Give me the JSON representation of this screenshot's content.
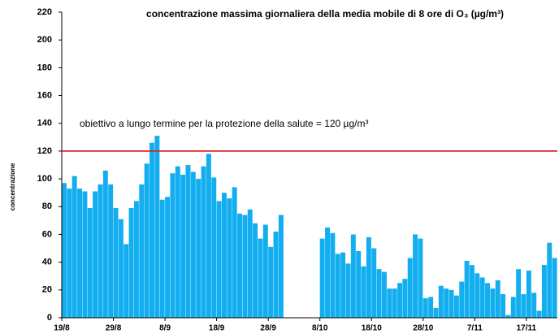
{
  "chart_data": {
    "type": "bar",
    "title": "concentrazione massima giornaliera della media mobile di 8 ore di O₃ (µg/m³)",
    "y_label": "concentrazione",
    "color": "#12aeef",
    "reference_line": {
      "value": 120,
      "label": "obiettivo a lungo termine per la protezione della salute = 120 µg/m³",
      "color": "#e02020"
    },
    "categories": [
      "19/8",
      null,
      null,
      null,
      null,
      null,
      null,
      null,
      null,
      null,
      "29/8",
      null,
      null,
      null,
      null,
      null,
      null,
      null,
      null,
      null,
      "8/9",
      null,
      null,
      null,
      null,
      null,
      null,
      null,
      null,
      null,
      "18/9",
      null,
      null,
      null,
      null,
      null,
      null,
      null,
      null,
      null,
      "28/9",
      null,
      null,
      null,
      null,
      null,
      null,
      null,
      null,
      null,
      "8/10",
      null,
      null,
      null,
      null,
      null,
      null,
      null,
      null,
      null,
      "18/10",
      null,
      null,
      null,
      null,
      null,
      null,
      null,
      null,
      null,
      "28/10",
      null,
      null,
      null,
      null,
      null,
      null,
      null,
      null,
      null,
      "7/11",
      null,
      null,
      null,
      null,
      null,
      null,
      null,
      null,
      null,
      "17/11",
      null,
      null,
      null,
      null,
      null
    ],
    "values": [
      97,
      93,
      102,
      93,
      91,
      79,
      91,
      96,
      106,
      96,
      79,
      71,
      53,
      79,
      84,
      96,
      111,
      126,
      131,
      85,
      87,
      104,
      109,
      103,
      110,
      105,
      100,
      109,
      118,
      101,
      84,
      90,
      86,
      94,
      75,
      74,
      78,
      68,
      57,
      67,
      51,
      62,
      74,
      null,
      null,
      null,
      null,
      null,
      null,
      null,
      57,
      65,
      61,
      46,
      47,
      39,
      60,
      48,
      37,
      58,
      50,
      35,
      33,
      21,
      21,
      25,
      28,
      43,
      60,
      57,
      14,
      15,
      7,
      23,
      21,
      20,
      16,
      26,
      41,
      38,
      32,
      29,
      25,
      21,
      27,
      17,
      2,
      15,
      35,
      17,
      34,
      18,
      5,
      38,
      54,
      43
    ],
    "ylim": [
      0,
      220
    ],
    "yticks": [
      0,
      20,
      40,
      60,
      80,
      100,
      120,
      140,
      160,
      180,
      200,
      220
    ]
  }
}
